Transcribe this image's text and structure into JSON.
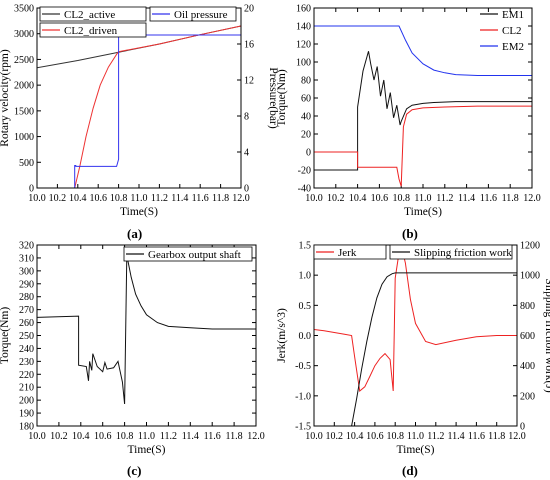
{
  "figure": {
    "panel_labels": [
      "(a)",
      "(b)",
      "(c)",
      "(d)"
    ]
  },
  "chart_data": [
    {
      "panel": "(a)",
      "type": "line",
      "xlabel": "Time(S)",
      "ylabel": "Rotary velocity(rpm)",
      "ylabel_right": "Pressure(bar)",
      "xlim": [
        10.0,
        12.0
      ],
      "ylim": [
        0,
        3500
      ],
      "ylim_right": [
        0,
        20
      ],
      "xticks": [
        "10.0",
        "10.2",
        "10.4",
        "10.6",
        "10.8",
        "11.0",
        "11.2",
        "11.4",
        "11.6",
        "11.8",
        "12.0"
      ],
      "yticks": [
        "0",
        "500",
        "1000",
        "1500",
        "2000",
        "2500",
        "3000",
        "3500"
      ],
      "yticks_right": [
        "0",
        "4",
        "8",
        "12",
        "16",
        "20"
      ],
      "legend": [
        "CL2_active",
        "CL2_driven",
        "Oil pressure"
      ],
      "series": [
        {
          "name": "CL2_active",
          "color": "#333333",
          "axis": "left",
          "x": [
            10.0,
            10.4,
            10.8,
            11.2,
            11.6,
            12.0
          ],
          "y": [
            2340,
            2480,
            2640,
            2800,
            2980,
            3150
          ]
        },
        {
          "name": "CL2_driven",
          "color": "#ee3333",
          "axis": "left",
          "x": [
            10.37,
            10.42,
            10.48,
            10.55,
            10.62,
            10.7,
            10.78,
            10.8,
            11.2,
            11.6,
            12.0
          ],
          "y": [
            0,
            420,
            1000,
            1550,
            2000,
            2350,
            2600,
            2650,
            2800,
            2980,
            3150
          ]
        },
        {
          "name": "Oil pressure",
          "color": "#3333ee",
          "axis": "right",
          "x": [
            10.0,
            10.37,
            10.37,
            10.38,
            10.38,
            10.78,
            10.8,
            10.8,
            12.0
          ],
          "y": [
            0,
            0,
            2.5,
            2.5,
            2.4,
            2.4,
            3.2,
            17,
            17
          ]
        }
      ]
    },
    {
      "panel": "(b)",
      "type": "line",
      "xlabel": "Time(S)",
      "ylabel": "Torque(Nm)",
      "xlim": [
        10.0,
        12.0
      ],
      "ylim": [
        -40,
        160
      ],
      "xticks": [
        "10.0",
        "10.2",
        "10.4",
        "10.6",
        "10.8",
        "11.0",
        "11.2",
        "11.4",
        "11.6",
        "11.8",
        "12.0"
      ],
      "yticks": [
        "-40",
        "-20",
        "0",
        "20",
        "40",
        "60",
        "80",
        "100",
        "120",
        "140",
        "160"
      ],
      "legend": [
        "EM1",
        "CL2",
        "EM2"
      ],
      "series": [
        {
          "name": "EM1",
          "color": "#111111",
          "x": [
            10.0,
            10.4,
            10.4,
            10.45,
            10.5,
            10.52,
            10.55,
            10.58,
            10.61,
            10.64,
            10.67,
            10.7,
            10.73,
            10.76,
            10.79,
            10.8,
            10.85,
            10.9,
            11.0,
            11.1,
            11.3,
            11.6,
            12.0
          ],
          "y": [
            -20,
            -20,
            50,
            90,
            112,
            98,
            80,
            95,
            62,
            80,
            48,
            66,
            38,
            52,
            30,
            34,
            48,
            52,
            54,
            55,
            56,
            56,
            56
          ]
        },
        {
          "name": "CL2",
          "color": "#ee2222",
          "x": [
            10.0,
            10.4,
            10.4,
            10.76,
            10.78,
            10.8,
            10.82,
            10.85,
            10.9,
            11.0,
            11.2,
            11.5,
            12.0
          ],
          "y": [
            0,
            0,
            -17,
            -17,
            -30,
            -38,
            28,
            42,
            47,
            49,
            50,
            51,
            51
          ]
        },
        {
          "name": "EM2",
          "color": "#2233ee",
          "x": [
            10.0,
            10.78,
            10.84,
            10.9,
            11.0,
            11.1,
            11.2,
            11.3,
            11.5,
            12.0
          ],
          "y": [
            140,
            140,
            124,
            110,
            98,
            91,
            88,
            86,
            85,
            85
          ]
        }
      ]
    },
    {
      "panel": "(c)",
      "type": "line",
      "xlabel": "Time(S)",
      "ylabel": "Torque(Nm)",
      "xlim": [
        10.0,
        12.0
      ],
      "ylim": [
        180,
        320
      ],
      "xticks": [
        "10.0",
        "10.2",
        "10.4",
        "10.6",
        "10.8",
        "11.0",
        "11.2",
        "11.4",
        "11.6",
        "11.8",
        "12.0"
      ],
      "yticks": [
        "180",
        "190",
        "200",
        "210",
        "220",
        "230",
        "240",
        "250",
        "260",
        "270",
        "280",
        "290",
        "300",
        "310",
        "320"
      ],
      "legend": [
        "Gearbox output shaft"
      ],
      "series": [
        {
          "name": "Gearbox output shaft",
          "color": "#111111",
          "x": [
            10.0,
            10.38,
            10.38,
            10.45,
            10.47,
            10.48,
            10.5,
            10.51,
            10.55,
            10.6,
            10.62,
            10.64,
            10.7,
            10.74,
            10.76,
            10.78,
            10.8,
            10.82,
            10.86,
            10.9,
            10.95,
            11.0,
            11.1,
            11.2,
            11.4,
            11.6,
            12.0
          ],
          "y": [
            264,
            265,
            227,
            226,
            215,
            230,
            223,
            236,
            226,
            222,
            229,
            224,
            225,
            230,
            222,
            214,
            197,
            312,
            295,
            282,
            273,
            266,
            260,
            257,
            256,
            255,
            255
          ]
        }
      ]
    },
    {
      "panel": "(d)",
      "type": "line",
      "xlabel": "Time(S)",
      "ylabel": "Jerk(m/s^3)",
      "ylabel_right": "Slipping friction work(J)",
      "xlim": [
        10.0,
        12.0
      ],
      "ylim": [
        -1.5,
        1.5
      ],
      "ylim_right": [
        0,
        1200
      ],
      "xticks": [
        "10.0",
        "10.2",
        "10.4",
        "10.6",
        "10.8",
        "11.0",
        "11.2",
        "11.4",
        "11.6",
        "11.8",
        "12.0"
      ],
      "yticks": [
        "-1.5",
        "-1.0",
        "-0.5",
        "0.0",
        "0.5",
        "1.0",
        "1.5"
      ],
      "yticks_right": [
        "0",
        "200",
        "400",
        "600",
        "800",
        "1000",
        "1200"
      ],
      "legend": [
        "Jerk",
        "Slipping friction work"
      ],
      "series": [
        {
          "name": "Jerk",
          "color": "#ee2222",
          "axis": "left",
          "x": [
            10.0,
            10.1,
            10.2,
            10.3,
            10.37,
            10.4,
            10.45,
            10.5,
            10.55,
            10.6,
            10.65,
            10.7,
            10.75,
            10.78,
            10.79,
            10.8,
            10.84,
            10.87,
            10.9,
            10.95,
            11.0,
            11.1,
            11.2,
            11.4,
            11.6,
            11.8,
            12.0
          ],
          "y": [
            0.1,
            0.08,
            0.05,
            0.02,
            0.0,
            -0.35,
            -0.92,
            -0.85,
            -0.68,
            -0.5,
            -0.38,
            -0.3,
            -0.4,
            -0.92,
            0.0,
            0.95,
            1.4,
            1.42,
            1.2,
            0.6,
            0.2,
            -0.1,
            -0.15,
            -0.08,
            -0.02,
            0.0,
            0.0
          ]
        },
        {
          "name": "Slipping friction work",
          "color": "#111111",
          "axis": "right",
          "x": [
            10.37,
            10.42,
            10.47,
            10.52,
            10.57,
            10.62,
            10.67,
            10.72,
            10.77,
            10.8,
            12.0
          ],
          "y": [
            0,
            180,
            380,
            560,
            720,
            850,
            940,
            990,
            1010,
            1015,
            1015
          ]
        }
      ]
    }
  ]
}
